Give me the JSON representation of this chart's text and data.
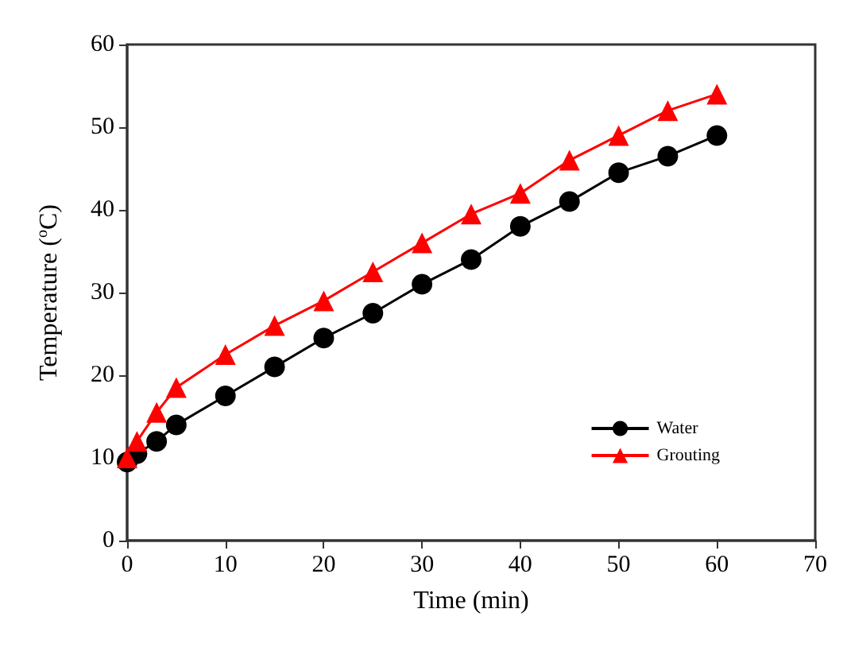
{
  "chart_data": {
    "type": "line",
    "xlabel": "Time (min)",
    "ylabel": "Temperature ($^{o}$C)",
    "xlim": [
      0,
      70
    ],
    "xticks": [
      0,
      10,
      20,
      30,
      40,
      50,
      60,
      70
    ],
    "ylim": [
      0,
      60
    ],
    "yticks": [
      0,
      10,
      20,
      30,
      40,
      50,
      60
    ],
    "grid": false,
    "legend": "bottom right",
    "series": [
      {
        "name": "Water",
        "color": "#000000",
        "marker": "circle",
        "x": [
          0,
          1,
          3,
          5,
          10,
          15,
          20,
          25,
          30,
          35,
          40,
          45,
          50,
          55,
          60
        ],
        "values": [
          9.5,
          10.5,
          12,
          14,
          17.5,
          21,
          24.5,
          27.5,
          31,
          34,
          38,
          41,
          44.5,
          46.5,
          49
        ]
      },
      {
        "name": "Grouting",
        "color": "#ff0000",
        "marker": "triangle",
        "x": [
          0,
          1,
          3,
          5,
          10,
          15,
          20,
          25,
          30,
          35,
          40,
          45,
          50,
          55,
          60
        ],
        "values": [
          10,
          12,
          15.5,
          18.5,
          22.5,
          26,
          29,
          32.5,
          36,
          39.5,
          42,
          46,
          49,
          52,
          54
        ]
      }
    ]
  }
}
